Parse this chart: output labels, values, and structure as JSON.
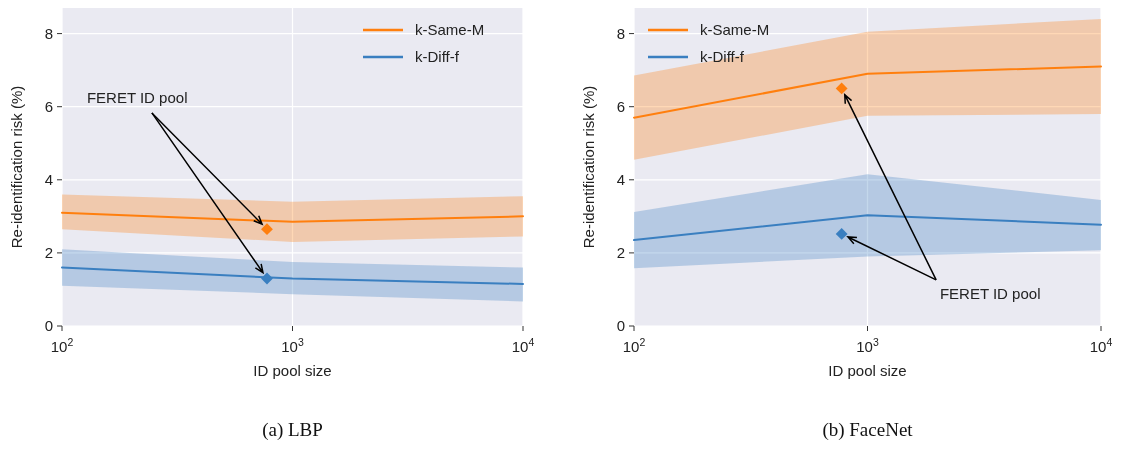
{
  "chart_data": [
    {
      "type": "line",
      "title": "(a) LBP",
      "xlabel": "ID pool size",
      "ylabel": "Re-identification risk (%)",
      "log": "x",
      "grid": true,
      "legend": "top right",
      "line_style": "solid",
      "annotations": [
        {
          "text": "FERET ID pool",
          "x": 775,
          "y": 2.65
        }
      ],
      "xlim": [
        100,
        10000
      ],
      "xticks": [
        {
          "value": 100,
          "label": "10$^{2}$"
        },
        {
          "value": 1000,
          "label": "10$^{3}$"
        },
        {
          "value": 10000,
          "label": "10$^{4}$"
        }
      ],
      "ylim": [
        0,
        8.7
      ],
      "yticks": [
        0,
        2,
        4,
        6,
        8
      ],
      "series": [
        {
          "name": "k-Same-M",
          "color": "#ff7f0e",
          "x": [
            100,
            1000,
            10000
          ],
          "values": [
            3.1,
            2.85,
            3.0
          ],
          "lower": [
            2.65,
            2.3,
            2.45
          ],
          "upper": [
            3.6,
            3.4,
            3.55
          ]
        },
        {
          "name": "k-Diff-f",
          "color": "#3a7fc0",
          "x": [
            100,
            1000,
            10000
          ],
          "values": [
            1.6,
            1.3,
            1.15
          ],
          "lower": [
            1.1,
            0.87,
            0.67
          ],
          "upper": [
            2.1,
            1.75,
            1.6
          ]
        },
        {
          "type": "scatter",
          "color": "#ff7f0e",
          "marker": "diamond",
          "x": [
            775
          ],
          "values": [
            2.65
          ]
        },
        {
          "type": "scatter",
          "color": "#3a7fc0",
          "marker": "diamond",
          "x": [
            775
          ],
          "values": [
            1.3
          ]
        }
      ]
    },
    {
      "type": "line",
      "title": "(b) FaceNet",
      "xlabel": "ID pool size",
      "ylabel": "Re-identification risk (%)",
      "log": "x",
      "grid": true,
      "legend": "top left",
      "line_style": "solid",
      "annotations": [
        {
          "text": "FERET ID pool",
          "x": 775,
          "y": 6.5
        }
      ],
      "xlim": [
        100,
        10000
      ],
      "xticks": [
        {
          "value": 100,
          "label": "10$^{2}$"
        },
        {
          "value": 1000,
          "label": "10$^{3}$"
        },
        {
          "value": 10000,
          "label": "10$^{4}$"
        }
      ],
      "ylim": [
        0,
        8.7
      ],
      "yticks": [
        0,
        2,
        4,
        6,
        8
      ],
      "series": [
        {
          "name": "k-Same-M",
          "color": "#ff7f0e",
          "x": [
            100,
            1000,
            10000
          ],
          "values": [
            5.7,
            6.9,
            7.1
          ],
          "lower": [
            4.55,
            5.75,
            5.8
          ],
          "upper": [
            6.85,
            8.05,
            8.4
          ]
        },
        {
          "name": "k-Diff-f",
          "color": "#3a7fc0",
          "x": [
            100,
            1000,
            10000
          ],
          "values": [
            2.35,
            3.03,
            2.77
          ],
          "lower": [
            1.58,
            1.9,
            2.07
          ],
          "upper": [
            3.12,
            4.15,
            3.45
          ]
        },
        {
          "type": "scatter",
          "color": "#ff7f0e",
          "marker": "diamond",
          "x": [
            775
          ],
          "values": [
            6.5
          ]
        },
        {
          "type": "scatter",
          "color": "#3a7fc0",
          "marker": "diamond",
          "x": [
            775
          ],
          "values": [
            2.52
          ]
        }
      ]
    }
  ]
}
